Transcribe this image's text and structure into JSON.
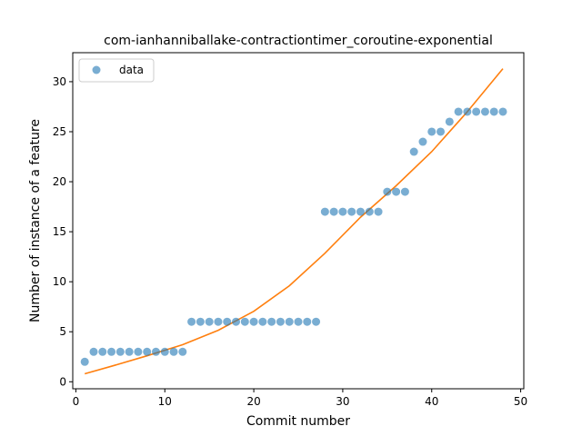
{
  "chart_data": {
    "type": "scatter",
    "title": "com-ianhanniballake-contractiontimer_coroutine-exponential",
    "xlabel": "Commit number",
    "ylabel": "Number of instance of a feature",
    "xlim": [
      -0.35,
      50.35
    ],
    "ylim": [
      -0.7,
      32.9
    ],
    "xticks": [
      0,
      10,
      20,
      30,
      40,
      50
    ],
    "yticks": [
      0,
      5,
      10,
      15,
      20,
      25,
      30
    ],
    "legend": {
      "position": "top-left",
      "entries": [
        "data"
      ]
    },
    "grid": false,
    "colors": {
      "data": "#1f77b4",
      "fit": "#ff7f0e"
    },
    "series": [
      {
        "name": "data",
        "kind": "scatter",
        "x": [
          1,
          2,
          3,
          4,
          5,
          6,
          7,
          8,
          9,
          10,
          11,
          12,
          13,
          14,
          15,
          16,
          17,
          18,
          19,
          20,
          21,
          22,
          23,
          24,
          25,
          26,
          27,
          28,
          29,
          30,
          31,
          32,
          33,
          34,
          35,
          36,
          37,
          38,
          39,
          40,
          41,
          42,
          43,
          44,
          45,
          46,
          47,
          48
        ],
        "y": [
          2,
          3,
          3,
          3,
          3,
          3,
          3,
          3,
          3,
          3,
          3,
          3,
          6,
          6,
          6,
          6,
          6,
          6,
          6,
          6,
          6,
          6,
          6,
          6,
          6,
          6,
          6,
          17,
          17,
          17,
          17,
          17,
          17,
          17,
          19,
          19,
          19,
          23,
          24,
          25,
          25,
          26,
          27,
          27,
          27,
          27,
          27,
          27
        ]
      },
      {
        "kind": "line",
        "x": [
          1,
          4,
          8,
          12,
          16,
          20,
          24,
          28,
          32,
          36,
          40,
          44,
          48
        ],
        "y": [
          0.8,
          1.55,
          2.6,
          3.7,
          5.15,
          7.05,
          9.6,
          12.85,
          16.45,
          19.6,
          23.0,
          27.0,
          31.3
        ]
      }
    ]
  }
}
